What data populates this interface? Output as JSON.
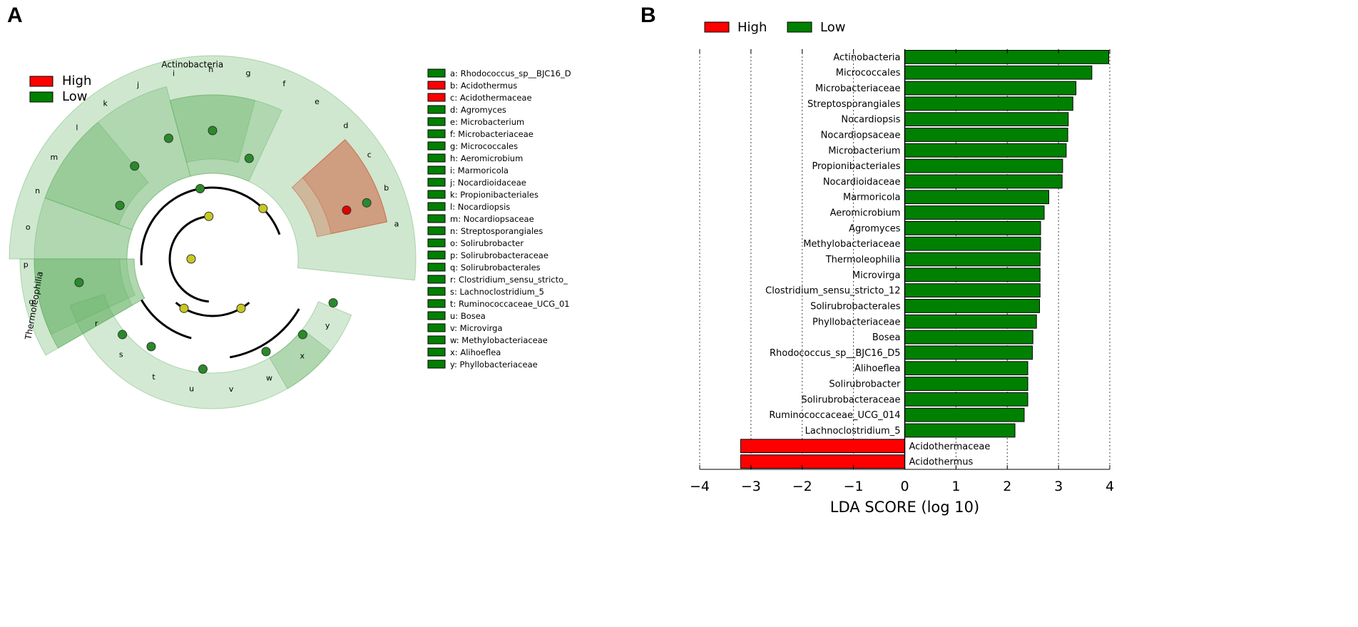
{
  "panel_a": {
    "label": "A",
    "legend": [
      {
        "name": "High",
        "color": "#ff0000"
      },
      {
        "name": "Low",
        "color": "#008000"
      }
    ],
    "clades": {
      "phylum": "Actinobacteria",
      "class": "Thermoleophilia"
    },
    "ring_letters": [
      "a",
      "b",
      "c",
      "d",
      "e",
      "f",
      "g",
      "h",
      "i",
      "j",
      "k",
      "l",
      "m",
      "n",
      "o",
      "p",
      "q",
      "r",
      "s",
      "t",
      "u",
      "v",
      "w",
      "x",
      "y"
    ],
    "key": [
      {
        "text": "a: Rhodococcus_sp__BJC16_D",
        "color": "#008000"
      },
      {
        "text": "b: Acidothermus",
        "color": "#ff0000"
      },
      {
        "text": "c: Acidothermaceae",
        "color": "#ff0000"
      },
      {
        "text": "d: Agromyces",
        "color": "#008000"
      },
      {
        "text": "e: Microbacterium",
        "color": "#008000"
      },
      {
        "text": "f: Microbacteriaceae",
        "color": "#008000"
      },
      {
        "text": "g: Micrococcales",
        "color": "#008000"
      },
      {
        "text": "h: Aeromicrobium",
        "color": "#008000"
      },
      {
        "text": "i: Marmoricola",
        "color": "#008000"
      },
      {
        "text": "j: Nocardioidaceae",
        "color": "#008000"
      },
      {
        "text": "k: Propionibacteriales",
        "color": "#008000"
      },
      {
        "text": "l: Nocardiopsis",
        "color": "#008000"
      },
      {
        "text": "m: Nocardiopsaceae",
        "color": "#008000"
      },
      {
        "text": "n: Streptosporangiales",
        "color": "#008000"
      },
      {
        "text": "o: Solirubrobacter",
        "color": "#008000"
      },
      {
        "text": "p: Solirubrobacteraceae",
        "color": "#008000"
      },
      {
        "text": "q: Solirubrobacterales",
        "color": "#008000"
      },
      {
        "text": "r: Clostridium_sensu_stricto_",
        "color": "#008000"
      },
      {
        "text": "s: Lachnoclostridium_5",
        "color": "#008000"
      },
      {
        "text": "t: Ruminococcaceae_UCG_01",
        "color": "#008000"
      },
      {
        "text": "u: Bosea",
        "color": "#008000"
      },
      {
        "text": "v: Microvirga",
        "color": "#008000"
      },
      {
        "text": "w: Methylobacteriaceae",
        "color": "#008000"
      },
      {
        "text": "x: Alihoeflea",
        "color": "#008000"
      },
      {
        "text": "y: Phyllobacteriaceae",
        "color": "#008000"
      }
    ]
  },
  "chart_data": {
    "type": "bar",
    "orientation": "horizontal",
    "panel_label": "B",
    "xlabel": "LDA SCORE (log 10)",
    "xlim": [
      -4,
      4
    ],
    "xticks": [
      -4,
      -3,
      -2,
      -1,
      0,
      1,
      2,
      3,
      4
    ],
    "xtick_labels": [
      "−4",
      "−3",
      "−2",
      "−1",
      "0",
      "1",
      "2",
      "3",
      "4"
    ],
    "grid": "vertical dotted",
    "legend": [
      {
        "name": "High",
        "color": "#ff0000"
      },
      {
        "name": "Low",
        "color": "#008000"
      }
    ],
    "legend_position": "top-left",
    "bars": [
      {
        "label": "Actinobacteria",
        "value": 3.98,
        "group": "Low"
      },
      {
        "label": "Micrococcales",
        "value": 3.65,
        "group": "Low"
      },
      {
        "label": "Microbacteriaceae",
        "value": 3.34,
        "group": "Low"
      },
      {
        "label": "Streptosporangiales",
        "value": 3.28,
        "group": "Low"
      },
      {
        "label": "Nocardiopsis",
        "value": 3.19,
        "group": "Low"
      },
      {
        "label": "Nocardiopsaceae",
        "value": 3.18,
        "group": "Low"
      },
      {
        "label": "Microbacterium",
        "value": 3.15,
        "group": "Low"
      },
      {
        "label": "Propionibacteriales",
        "value": 3.08,
        "group": "Low"
      },
      {
        "label": "Nocardioidaceae",
        "value": 3.07,
        "group": "Low"
      },
      {
        "label": "Marmoricola",
        "value": 2.81,
        "group": "Low"
      },
      {
        "label": "Aeromicrobium",
        "value": 2.72,
        "group": "Low"
      },
      {
        "label": "Agromyces",
        "value": 2.65,
        "group": "Low"
      },
      {
        "label": "Methylobacteriaceae",
        "value": 2.65,
        "group": "Low"
      },
      {
        "label": "Thermoleophilia",
        "value": 2.64,
        "group": "Low"
      },
      {
        "label": "Microvirga",
        "value": 2.64,
        "group": "Low"
      },
      {
        "label": "Clostridium_sensu_stricto_12",
        "value": 2.64,
        "group": "Low"
      },
      {
        "label": "Solirubrobacterales",
        "value": 2.63,
        "group": "Low"
      },
      {
        "label": "Phyllobacteriaceae",
        "value": 2.57,
        "group": "Low"
      },
      {
        "label": "Bosea",
        "value": 2.5,
        "group": "Low"
      },
      {
        "label": "Rhodococcus_sp__BJC16_D5",
        "value": 2.49,
        "group": "Low"
      },
      {
        "label": "Alihoeflea",
        "value": 2.4,
        "group": "Low"
      },
      {
        "label": "Solirubrobacter",
        "value": 2.4,
        "group": "Low"
      },
      {
        "label": "Solirubrobacteraceae",
        "value": 2.4,
        "group": "Low"
      },
      {
        "label": "Ruminococcaceae_UCG_014",
        "value": 2.33,
        "group": "Low"
      },
      {
        "label": "Lachnoclostridium_5",
        "value": 2.15,
        "group": "Low"
      },
      {
        "label": "Acidothermaceae",
        "value": -3.2,
        "group": "High"
      },
      {
        "label": "Acidothermus",
        "value": -3.2,
        "group": "High"
      }
    ]
  }
}
